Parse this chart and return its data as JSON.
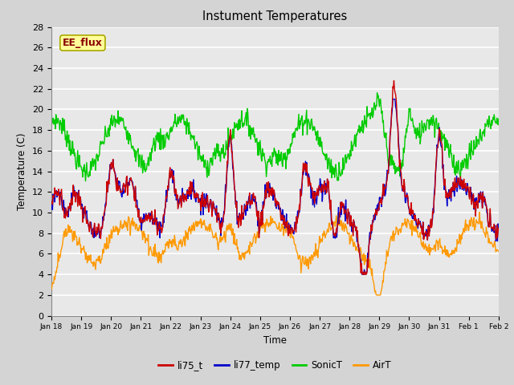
{
  "title": "Instument Temperatures",
  "xlabel": "Time",
  "ylabel": "Temperature (C)",
  "ylim": [
    0,
    28
  ],
  "yticks": [
    0,
    2,
    4,
    6,
    8,
    10,
    12,
    14,
    16,
    18,
    20,
    22,
    24,
    26,
    28
  ],
  "xtick_labels": [
    "Jan 18",
    "Jan 19",
    "Jan 20",
    "Jan 21",
    "Jan 22",
    "Jan 23",
    "Jan 24",
    "Jan 25",
    "Jan 26",
    "Jan 27",
    "Jan 28",
    "Jan 29",
    "Jan 30",
    "Jan 31",
    "Feb 1",
    "Feb 2"
  ],
  "colors": {
    "li75_t": "#cc0000",
    "li77_temp": "#0000cc",
    "SonicT": "#00cc00",
    "AirT": "#ff9900"
  },
  "legend_label": "EE_flux",
  "legend_box_color": "#ffff99",
  "legend_box_edge": "#aaa800",
  "fig_bg_color": "#d4d4d4",
  "plot_bg_color": "#e8e8e8",
  "grid_color": "#ffffff",
  "linewidth": 1.0,
  "n_points": 800
}
